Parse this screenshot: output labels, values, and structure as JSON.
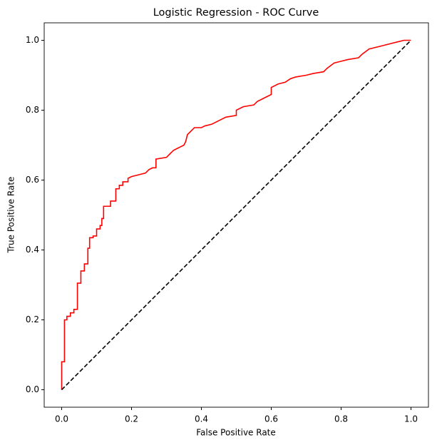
{
  "chart_data": {
    "type": "line",
    "title": "Logistic Regression - ROC Curve",
    "xlabel": "False Positive Rate",
    "ylabel": "True Positive Rate",
    "xlim": [
      -0.05,
      1.05
    ],
    "ylim": [
      -0.05,
      1.05
    ],
    "xticks": [
      {
        "value": 0,
        "label": "0.0"
      },
      0.2,
      0.4,
      0.6,
      0.8,
      {
        "value": 1,
        "label": "1.0"
      }
    ],
    "yticks": [
      {
        "value": 0,
        "label": "0.0"
      },
      0.2,
      0.4,
      0.6,
      0.8,
      {
        "value": 1,
        "label": "1.0"
      }
    ],
    "grid": false,
    "series": [
      {
        "color": "#ff0000",
        "dash": false,
        "x": [
          0,
          0,
          0.008,
          0.008,
          0.015,
          0.015,
          0.025,
          0.025,
          0.035,
          0.035,
          0.045,
          0.045,
          0.055,
          0.055,
          0.065,
          0.065,
          0.075,
          0.075,
          0.08,
          0.08,
          0.09,
          0.09,
          0.1,
          0.1,
          0.11,
          0.11,
          0.115,
          0.115,
          0.12,
          0.12,
          0.14,
          0.14,
          0.155,
          0.155,
          0.165,
          0.165,
          0.175,
          0.175,
          0.19,
          0.19,
          0.2,
          0.22,
          0.24,
          0.25,
          0.26,
          0.27,
          0.27,
          0.3,
          0.31,
          0.32,
          0.33,
          0.35,
          0.355,
          0.36,
          0.37,
          0.38,
          0.4,
          0.41,
          0.43,
          0.45,
          0.47,
          0.5,
          0.5,
          0.52,
          0.55,
          0.56,
          0.58,
          0.6,
          0.6,
          0.62,
          0.64,
          0.655,
          0.67,
          0.7,
          0.72,
          0.75,
          0.76,
          0.78,
          0.8,
          0.82,
          0.85,
          0.86,
          0.88,
          0.92,
          0.94,
          0.96,
          0.98,
          1.0
        ],
        "y": [
          0,
          0.08,
          0.08,
          0.2,
          0.2,
          0.21,
          0.21,
          0.22,
          0.22,
          0.23,
          0.23,
          0.305,
          0.305,
          0.34,
          0.34,
          0.36,
          0.36,
          0.405,
          0.405,
          0.435,
          0.435,
          0.44,
          0.44,
          0.46,
          0.46,
          0.47,
          0.47,
          0.49,
          0.49,
          0.525,
          0.525,
          0.54,
          0.54,
          0.575,
          0.575,
          0.585,
          0.585,
          0.595,
          0.595,
          0.605,
          0.61,
          0.615,
          0.62,
          0.63,
          0.635,
          0.635,
          0.66,
          0.665,
          0.675,
          0.685,
          0.69,
          0.7,
          0.71,
          0.73,
          0.74,
          0.75,
          0.75,
          0.755,
          0.76,
          0.77,
          0.78,
          0.785,
          0.8,
          0.81,
          0.815,
          0.825,
          0.835,
          0.845,
          0.865,
          0.875,
          0.88,
          0.89,
          0.895,
          0.9,
          0.905,
          0.91,
          0.92,
          0.935,
          0.94,
          0.945,
          0.95,
          0.96,
          0.975,
          0.985,
          0.99,
          0.995,
          1.0,
          1.0
        ]
      },
      {
        "color": "#000000",
        "dash": true,
        "x": [
          0,
          1
        ],
        "y": [
          0,
          1
        ]
      }
    ]
  }
}
